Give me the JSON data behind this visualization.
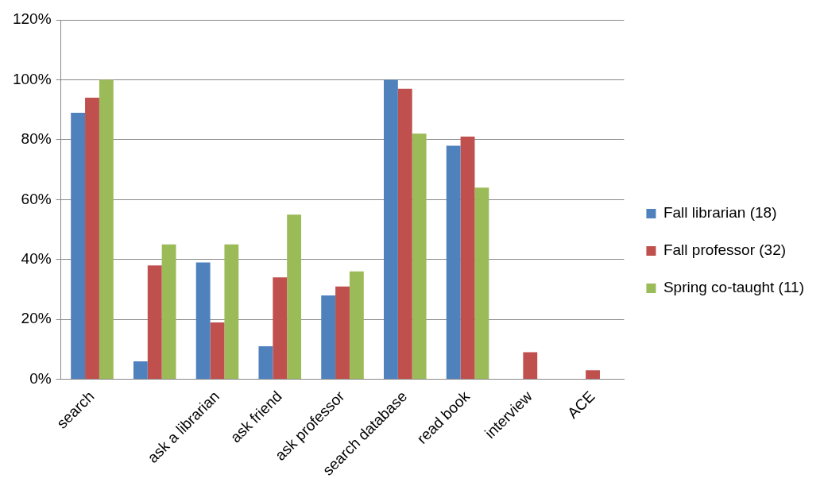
{
  "chart_data": {
    "type": "bar",
    "categories": [
      "search",
      null,
      "ask a librarian",
      "ask friend",
      "ask professor",
      "search database",
      "read book",
      "interview",
      "ACE"
    ],
    "series": [
      {
        "name": "Fall librarian (18)",
        "color": "#4f81bd",
        "values": [
          89,
          6,
          39,
          11,
          28,
          100,
          78,
          0,
          0
        ]
      },
      {
        "name": "Fall professor (32)",
        "color": "#c0504d",
        "values": [
          94,
          38,
          19,
          34,
          31,
          97,
          81,
          9,
          3
        ]
      },
      {
        "name": "Spring co-taught (11)",
        "color": "#9bbb59",
        "values": [
          100,
          45,
          45,
          55,
          36,
          82,
          64,
          0,
          0
        ]
      }
    ],
    "ylim": [
      0,
      120
    ],
    "yticks": [
      {
        "value": 0,
        "label": "0%"
      },
      {
        "value": 20,
        "label": "20%"
      },
      {
        "value": 40,
        "label": "40%"
      },
      {
        "value": 60,
        "label": "60%"
      },
      {
        "value": 80,
        "label": "80%"
      },
      {
        "value": 100,
        "label": "100%"
      },
      {
        "value": 120,
        "label": "120%"
      }
    ],
    "grid": "y",
    "legend": "right"
  }
}
